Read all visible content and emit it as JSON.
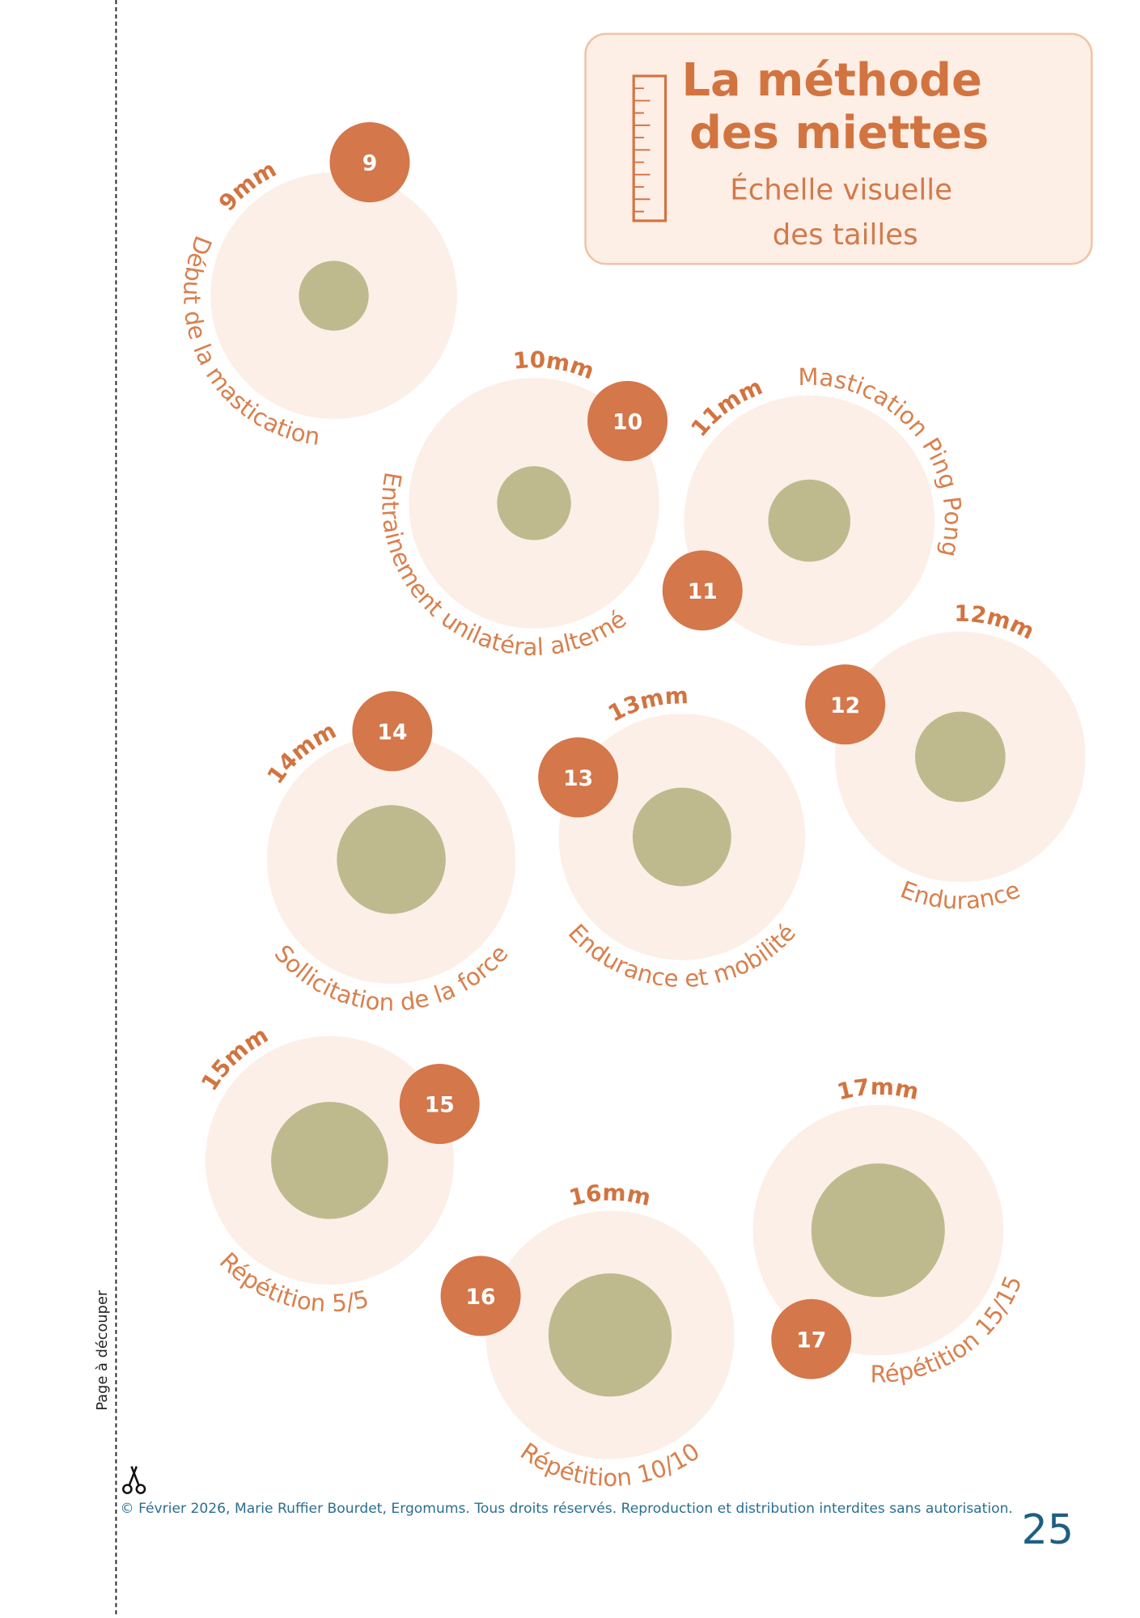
{
  "title": [
    "La méthode",
    "des miettes"
  ],
  "subtitle": [
    "Échelle visuelle",
    "des tailles"
  ],
  "items": [
    {
      "number": "9",
      "size": "9mm",
      "caption": "Début de la mastication"
    },
    {
      "number": "10",
      "size": "10mm",
      "caption": "Entrainement unilatéral alterné"
    },
    {
      "number": "11",
      "size": "11mm",
      "caption": "Mastication Ping Pong"
    },
    {
      "number": "12",
      "size": "12mm",
      "caption": "Endurance"
    },
    {
      "number": "13",
      "size": "13mm",
      "caption": "Endurance et mobilité"
    },
    {
      "number": "14",
      "size": "14mm",
      "caption": "Sollicitation de la force"
    },
    {
      "number": "15",
      "size": "15mm",
      "caption": "Répétition 5/5"
    },
    {
      "number": "16",
      "size": "16mm",
      "caption": "Répétition 10/10"
    },
    {
      "number": "17",
      "size": "17mm",
      "caption": "Répétition 15/15"
    }
  ],
  "side_label": "Page à découper",
  "footer": "© Février 2026, Marie Ruffier Bourdet, Ergomums. Tous droits réservés. Reproduction et distribution interdites sans autorisation.",
  "page_number": "25"
}
